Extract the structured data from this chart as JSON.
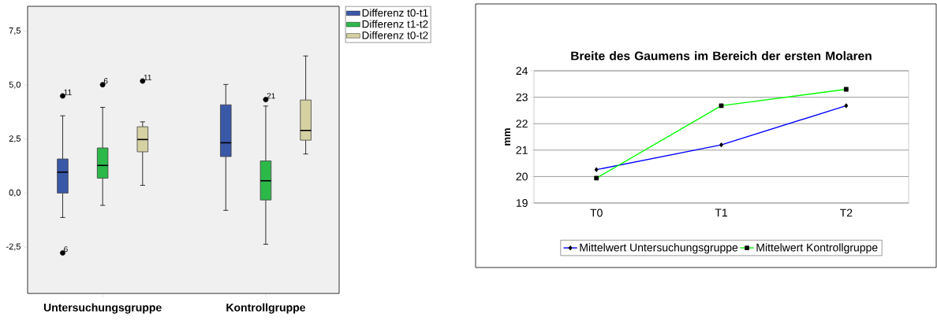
{
  "chart_data": [
    {
      "type": "box",
      "categories": [
        "Untersuchungsgruppe",
        "Kontrollgruppe"
      ],
      "series": [
        {
          "name": "Differenz t0-t1",
          "color": "#3a58a8",
          "boxes": [
            {
              "low": -1.13,
              "q1": 0,
              "median": 0.97,
              "q3": 1.58,
              "high": 3.58,
              "outliers": [
                4.5,
                -2.77
              ]
            },
            {
              "low": -0.8,
              "q1": 1.69,
              "median": 2.33,
              "q3": 4.09,
              "high": 5.03
            }
          ]
        },
        {
          "name": "Differenz t1-t2",
          "color": "#2db84a",
          "boxes": [
            {
              "low": -0.57,
              "q1": 0.69,
              "median": 1.28,
              "q3": 2.09,
              "high": 3.97,
              "outliers": [
                5.02
              ]
            },
            {
              "low": -2.37,
              "q1": -0.32,
              "median": 0.57,
              "q3": 1.49,
              "high": 4.03,
              "outliers": [
                4.33
              ]
            }
          ]
        },
        {
          "name": "Differenz t0-t2",
          "color": "#d6d1a2",
          "boxes": [
            {
              "low": 0.36,
              "q1": 1.91,
              "median": 2.48,
              "q3": 3.07,
              "high": 3.3,
              "outliers": [
                5.19
              ]
            },
            {
              "low": 1.81,
              "q1": 2.45,
              "median": 2.9,
              "q3": 4.31,
              "high": 6.35
            }
          ]
        }
      ],
      "ylim": [
        -4.65,
        8.65
      ],
      "yticks": [
        {
          "value": -2.5,
          "label": "-2,5"
        },
        {
          "value": 0,
          "label": "0,0"
        },
        {
          "value": 2.5,
          "label": "2,5"
        },
        {
          "value": 5,
          "label": "5,0"
        },
        {
          "value": 7.5,
          "label": "7,5"
        }
      ],
      "annotations": [
        "11",
        "6",
        "6",
        "11",
        "21"
      ],
      "legend": "top right",
      "grid": false
    },
    {
      "type": "line",
      "title": "Breite des Gaumens im Bereich der ersten Molaren",
      "ylabel": "mm",
      "categories": [
        "T0",
        "T1",
        "T2"
      ],
      "series": [
        {
          "name": "Mittelwert Untersuchungsgruppe",
          "color": "#0000ff",
          "marker": "diamond",
          "values": [
            20.26,
            21.2,
            22.68
          ]
        },
        {
          "name": "Mittelwert Kontrollgruppe",
          "color": "#00ff00",
          "marker": "square",
          "values": [
            19.94,
            22.68,
            23.3
          ]
        }
      ],
      "ylim": [
        19,
        24
      ],
      "yticks": [
        19,
        20,
        21,
        22,
        23,
        24
      ],
      "grid": "y",
      "legend": "bottom",
      "line_style": "solid"
    }
  ]
}
